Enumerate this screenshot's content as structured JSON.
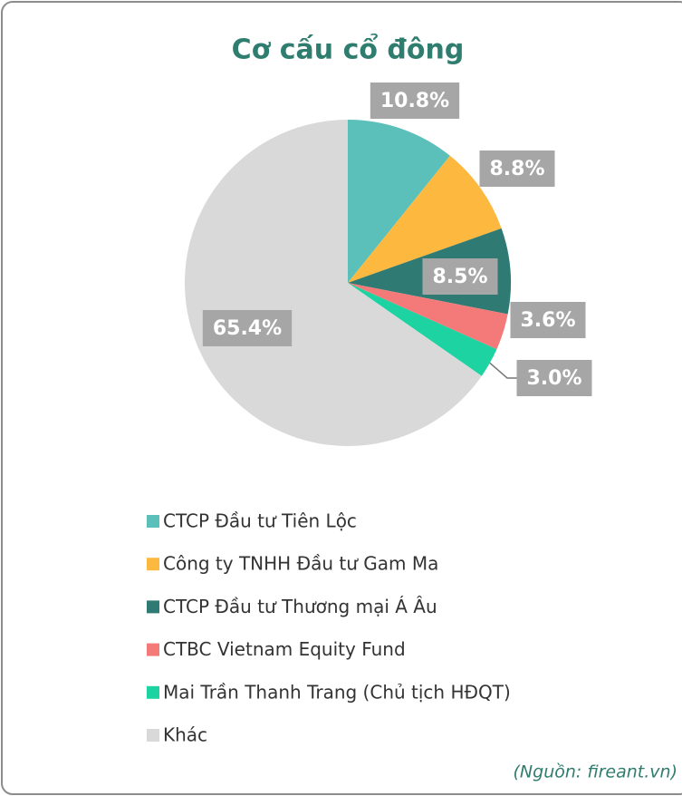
{
  "chart_data": {
    "type": "pie",
    "title": "Cơ cấu cổ đông",
    "categories": [
      "CTCP Đầu tư Tiên Lộc",
      "Công ty TNHH Đầu tư Gam Ma",
      "CTCP Đầu tư Thương mại Á Âu",
      "CTBC Vietnam Equity Fund",
      "Mai Trần Thanh Trang (Chủ tịch HĐQT)",
      "Khác"
    ],
    "values": [
      10.8,
      8.8,
      8.5,
      3.6,
      3.0,
      65.4
    ],
    "value_labels": [
      "10.8%",
      "8.8%",
      "8.5%",
      "3.6%",
      "3.0%",
      "65.4%"
    ],
    "colors": [
      "#5bbfba",
      "#fdb93f",
      "#2f7a72",
      "#f47a7a",
      "#1dd3a1",
      "#d9d9d9"
    ],
    "legend": "bottom",
    "source": "(Nguồn: fireant.vn)"
  }
}
